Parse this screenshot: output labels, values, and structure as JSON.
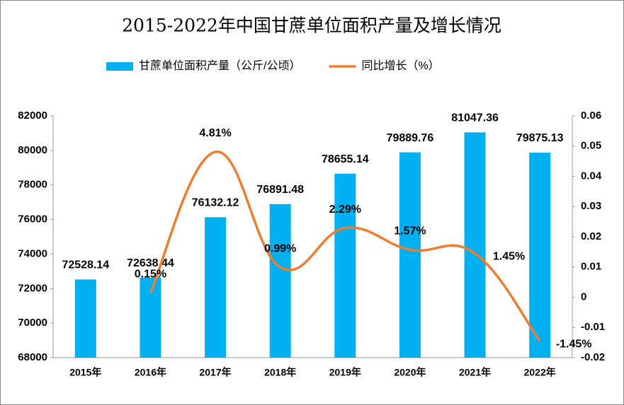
{
  "chart_data": {
    "type": "bar",
    "title": "2015-2022年中国甘蔗单位面积产量及增长情况",
    "categories": [
      "2015年",
      "2016年",
      "2017年",
      "2018年",
      "2019年",
      "2020年",
      "2021年",
      "2022年"
    ],
    "series": [
      {
        "name": "甘蔗单位面积产量（公斤/公顷）",
        "type": "bar",
        "color": "#00b0f0",
        "values": [
          72528.14,
          72638.44,
          76132.12,
          76891.48,
          78655.14,
          79889.76,
          81047.36,
          79875.13
        ]
      },
      {
        "name": "同比增长（%）",
        "type": "line",
        "axis": "y2",
        "color": "#ed7d31",
        "values": [
          null,
          0.0015,
          0.0481,
          0.0099,
          0.0229,
          0.0157,
          0.0145,
          -0.0145
        ],
        "value_labels": [
          null,
          "0.15%",
          "4.81%",
          "0.99%",
          "2.29%",
          "1.57%",
          "1.45%",
          "-1.45%"
        ]
      }
    ],
    "ylim": [
      68000,
      82000
    ],
    "yticks": [
      68000,
      70000,
      72000,
      74000,
      76000,
      78000,
      80000,
      82000
    ],
    "y2lim": [
      -0.02,
      0.06
    ],
    "y2ticks": [
      -0.02,
      -0.01,
      0,
      0.01,
      0.02,
      0.03,
      0.04,
      0.05,
      0.06
    ],
    "grid": false,
    "legend": "top"
  }
}
